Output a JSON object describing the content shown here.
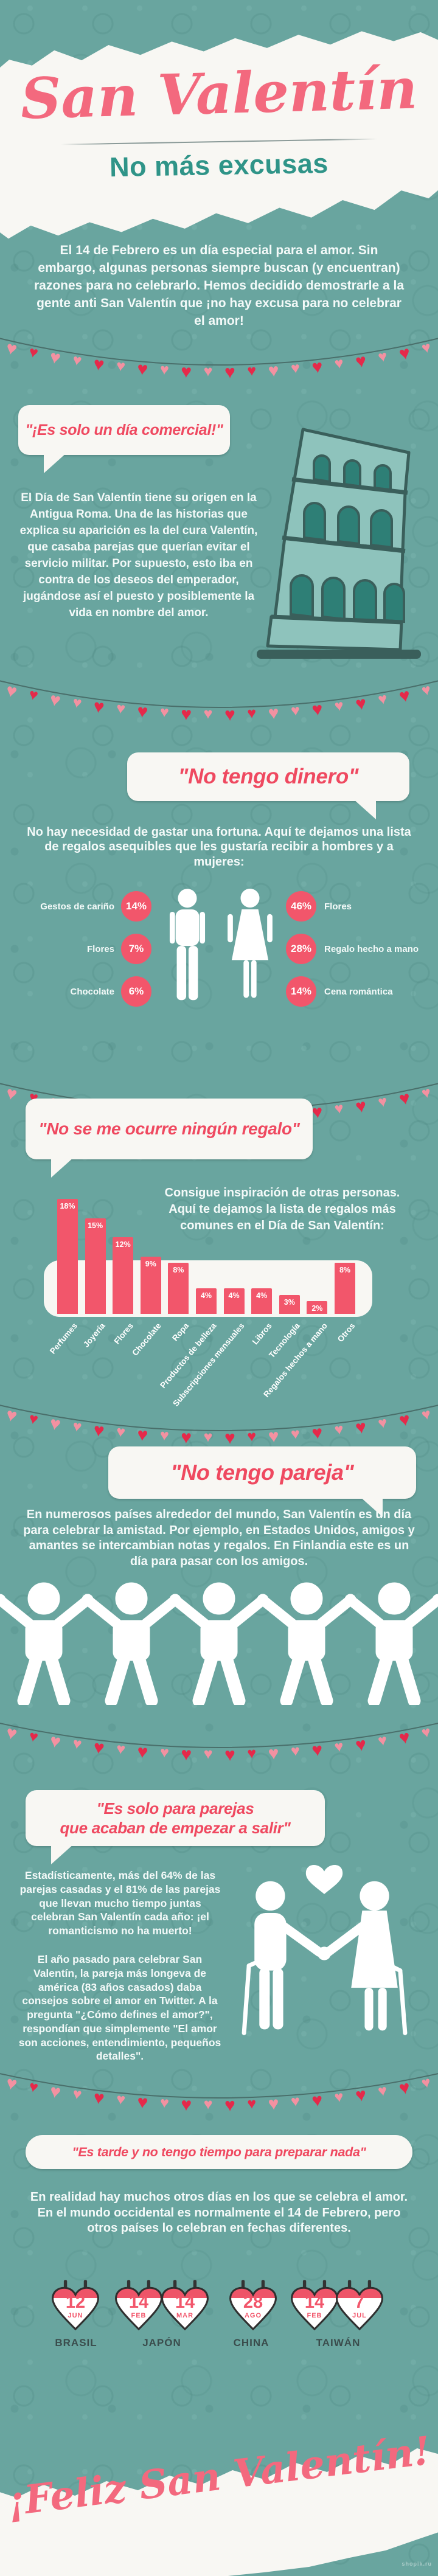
{
  "theme": {
    "background": "#69a59f",
    "paper": "#f8f7f3",
    "accent_pink": "#f2566b",
    "title_pink": "#f3697e",
    "teal_heading": "#2f9488",
    "bubble_text": "#ef4960",
    "heart_dark": "#e5294a",
    "heart_light": "#f391a1",
    "string": "#4a6f6b",
    "label_dark": "#3a4c4c",
    "garland_pattern": "dldlldldldlddlldldldll"
  },
  "header": {
    "title": "San Valentín",
    "subtitle": "No más excusas"
  },
  "intro": "El 14 de Febrero es un día especial para el amor. Sin embargo, algunas personas siempre buscan (y encuentran) razones para no celebrarlo. Hemos decidido demostrarle a la gente anti San Valentín que ¡no hay excusa para no celebrar el amor!",
  "sections": {
    "comercial": {
      "bubble": "\"¡Es solo un día comercial!\"",
      "body": "El Día de San Valentín tiene su origen en la Antigua Roma. Una de las historias que explica su aparición es la del cura Valentín, que casaba parejas que querían evitar el servicio militar. Por supuesto, esto iba en contra de los deseos del emperador, jugándose así el puesto y posiblemente la vida en nombre del amor."
    },
    "dinero": {
      "bubble": "\"No tengo dinero\"",
      "body": "No hay necesidad de gastar una fortuna. Aquí te dejamos una lista de regalos asequibles que les gustaría recibir a hombres y a mujeres:"
    },
    "regalo": {
      "bubble": "\"No se me ocurre ningún regalo\"",
      "body": "Consigue inspiración de otras personas. Aquí te dejamos la lista de regalos más comunes en el Día de San Valentín:"
    },
    "pareja": {
      "bubble": "\"No tengo pareja\"",
      "body": "En numerosos países alrededor del mundo, San Valentín es un día para celebrar la amistad. Por ejemplo, en Estados Unidos, amigos y amantes se intercambian notas y regalos. En Finlandia este es un día para pasar con los amigos."
    },
    "parejas_nuevas": {
      "bubble_line1": "\"Es solo para parejas",
      "bubble_line2": "que acaban de empezar a salir\"",
      "body1": "Estadísticamente, más del 64% de las parejas casadas y el 81% de las parejas que llevan mucho tiempo juntas celebran San Valentín cada año: ¡el romanticismo no ha muerto!",
      "body2": "El año pasado para celebrar San Valentín, la pareja más longeva de américa (83 años casados) daba consejos sobre el amor en Twitter. A la pregunta \"¿Cómo defines el amor?\", respondían que simplemente \"El amor son acciones, entendimiento, pequeños detalles\"."
    },
    "tarde": {
      "bubble": "\"Es tarde y no tengo tiempo para preparar nada\"",
      "body": "En realidad hay muchos otros días en los que se celebra el amor. En el mundo occidental es normalmente el 14 de Febrero, pero otros países lo celebran en fechas diferentes."
    }
  },
  "footer": {
    "message": "¡Feliz San Valentín!",
    "watermark": "shopik.ru"
  },
  "chart_data": [
    {
      "type": "bar",
      "title": "Lista de regalos más comunes en el Día de San Valentín",
      "categories": [
        "Perfumes",
        "Joyería",
        "Flores",
        "Chocolate",
        "Ropa",
        "Productos de belleza",
        "Subscripciones mensuales",
        "Libros",
        "Tecnología",
        "Regalos hechos a mano",
        "Otros"
      ],
      "values": [
        18,
        15,
        12,
        9,
        8,
        4,
        4,
        4,
        3,
        2,
        8
      ],
      "value_labels": [
        "18%",
        "15%",
        "12%",
        "9%",
        "8%",
        "4%",
        "4%",
        "4%",
        "3%",
        "2%",
        "8%"
      ],
      "unit": "%",
      "ylim": [
        0,
        20
      ],
      "bar_color": "#f2566b",
      "legend": false,
      "grid": false
    },
    {
      "type": "pictogram",
      "title": "Regalos asequibles que les gustaría recibir a hombres y a mujeres",
      "series": [
        {
          "name": "hombres",
          "items": [
            {
              "label": "Gestos de cariño",
              "value": 14,
              "value_label": "14%"
            },
            {
              "label": "Flores",
              "value": 7,
              "value_label": "7%"
            },
            {
              "label": "Chocolate",
              "value": 6,
              "value_label": "6%"
            }
          ]
        },
        {
          "name": "mujeres",
          "items": [
            {
              "label": "Flores",
              "value": 46,
              "value_label": "46%"
            },
            {
              "label": "Regalo hecho a mano",
              "value": 28,
              "value_label": "28%"
            },
            {
              "label": "Cena romántica",
              "value": 14,
              "value_label": "14%"
            }
          ]
        }
      ],
      "unit": "%"
    },
    {
      "type": "table",
      "title": "Fechas de celebración del amor por país",
      "entries": [
        {
          "country": "BRASIL",
          "dates": [
            {
              "day": "12",
              "month": "JUN"
            }
          ]
        },
        {
          "country": "JAPÓN",
          "dates": [
            {
              "day": "14",
              "month": "FEB"
            },
            {
              "day": "14",
              "month": "MAR"
            }
          ]
        },
        {
          "country": "CHINA",
          "dates": [
            {
              "day": "28",
              "month": "AGO"
            }
          ]
        },
        {
          "country": "TAIWÁN",
          "dates": [
            {
              "day": "14",
              "month": "FEB"
            },
            {
              "day": "7",
              "month": "JUL"
            }
          ]
        }
      ]
    }
  ]
}
